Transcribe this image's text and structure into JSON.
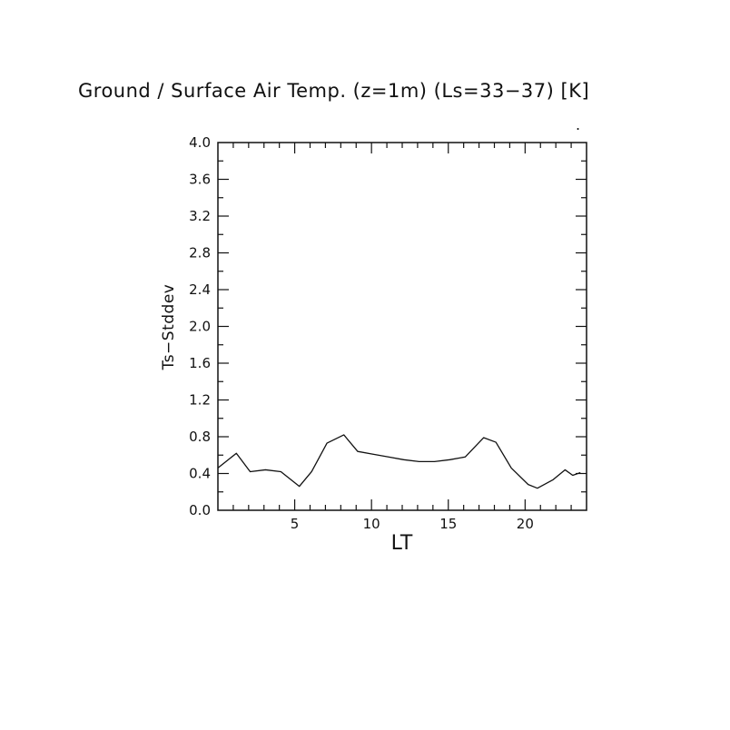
{
  "chart_data": {
    "type": "line",
    "title": "Ground / Surface Air Temp. (z=1m) (Ls=33−37) [K]",
    "xlabel": "LT",
    "ylabel": "Ts−Stddev",
    "xlim": [
      0,
      24
    ],
    "ylim": [
      0.0,
      4.0
    ],
    "x_major_ticks": [
      5,
      10,
      15,
      20
    ],
    "y_major_ticks": [
      0.0,
      0.4,
      0.8,
      1.2,
      1.6,
      2.0,
      2.4,
      2.8,
      3.2,
      3.6,
      4.0
    ],
    "x_minor_step": 1,
    "y_minor_step": 0.2,
    "grid": false,
    "legend": "none",
    "line_color": "#111111",
    "background_color": "#ffffff",
    "points": [
      [
        0.0,
        0.46
      ],
      [
        1.2,
        0.62
      ],
      [
        2.1,
        0.42
      ],
      [
        3.1,
        0.44
      ],
      [
        4.1,
        0.42
      ],
      [
        5.3,
        0.26
      ],
      [
        6.1,
        0.42
      ],
      [
        7.1,
        0.73
      ],
      [
        8.2,
        0.82
      ],
      [
        9.1,
        0.64
      ],
      [
        10.1,
        0.61
      ],
      [
        11.1,
        0.58
      ],
      [
        12.1,
        0.55
      ],
      [
        13.1,
        0.53
      ],
      [
        14.1,
        0.53
      ],
      [
        15.1,
        0.55
      ],
      [
        16.1,
        0.58
      ],
      [
        17.3,
        0.79
      ],
      [
        18.1,
        0.74
      ],
      [
        19.1,
        0.46
      ],
      [
        20.2,
        0.28
      ],
      [
        20.8,
        0.24
      ],
      [
        21.8,
        0.33
      ],
      [
        22.6,
        0.44
      ],
      [
        23.1,
        0.38
      ],
      [
        23.6,
        0.41
      ]
    ]
  },
  "stray_mark": "."
}
